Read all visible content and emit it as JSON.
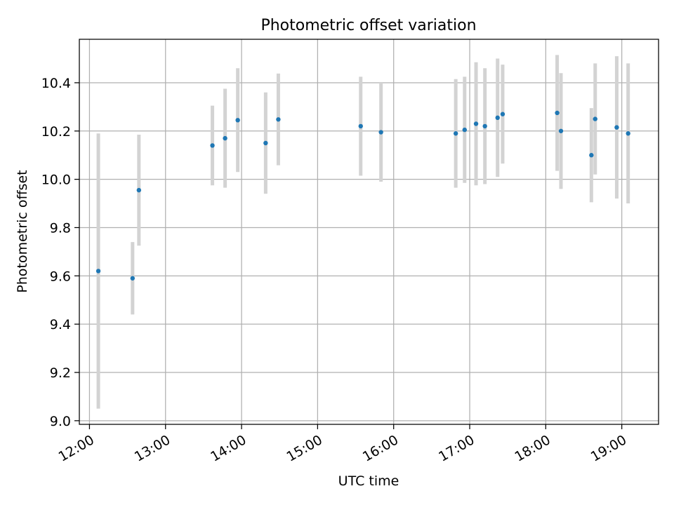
{
  "chart_data": {
    "type": "scatter",
    "title": "Photometric offset variation",
    "xlabel": "UTC time",
    "ylabel": "Photometric offset",
    "xlim": [
      "11:52",
      "19:29"
    ],
    "ylim": [
      8.985,
      10.58
    ],
    "x_ticks": [
      "12:00",
      "13:00",
      "14:00",
      "15:00",
      "16:00",
      "17:00",
      "18:00",
      "19:00"
    ],
    "y_ticks": [
      "9.0",
      "9.2",
      "9.4",
      "9.6",
      "9.8",
      "10.0",
      "10.2",
      "10.4"
    ],
    "grid": true,
    "marker_color": "#1f77b4",
    "errorbar_color": "#d3d3d3",
    "points": [
      {
        "time": "12:07",
        "y": 9.62,
        "err": 0.57
      },
      {
        "time": "12:34",
        "y": 9.59,
        "err": 0.15
      },
      {
        "time": "12:39",
        "y": 9.955,
        "err": 0.23
      },
      {
        "time": "13:37",
        "y": 10.14,
        "err": 0.165
      },
      {
        "time": "13:47",
        "y": 10.17,
        "err": 0.205
      },
      {
        "time": "13:57",
        "y": 10.245,
        "err": 0.215
      },
      {
        "time": "14:19",
        "y": 10.15,
        "err": 0.21
      },
      {
        "time": "14:29",
        "y": 10.248,
        "err": 0.19
      },
      {
        "time": "15:34",
        "y": 10.22,
        "err": 0.205
      },
      {
        "time": "15:50",
        "y": 10.195,
        "err": 0.205
      },
      {
        "time": "16:49",
        "y": 10.19,
        "err": 0.225
      },
      {
        "time": "16:56",
        "y": 10.205,
        "err": 0.22
      },
      {
        "time": "17:05",
        "y": 10.23,
        "err": 0.255
      },
      {
        "time": "17:12",
        "y": 10.22,
        "err": 0.24
      },
      {
        "time": "17:22",
        "y": 10.255,
        "err": 0.245
      },
      {
        "time": "17:26",
        "y": 10.27,
        "err": 0.205
      },
      {
        "time": "18:09",
        "y": 10.275,
        "err": 0.24
      },
      {
        "time": "18:12",
        "y": 10.2,
        "err": 0.24
      },
      {
        "time": "18:36",
        "y": 10.1,
        "err": 0.195
      },
      {
        "time": "18:39",
        "y": 10.25,
        "err": 0.23
      },
      {
        "time": "18:56",
        "y": 10.215,
        "err": 0.295
      },
      {
        "time": "19:05",
        "y": 10.19,
        "err": 0.29
      }
    ]
  }
}
